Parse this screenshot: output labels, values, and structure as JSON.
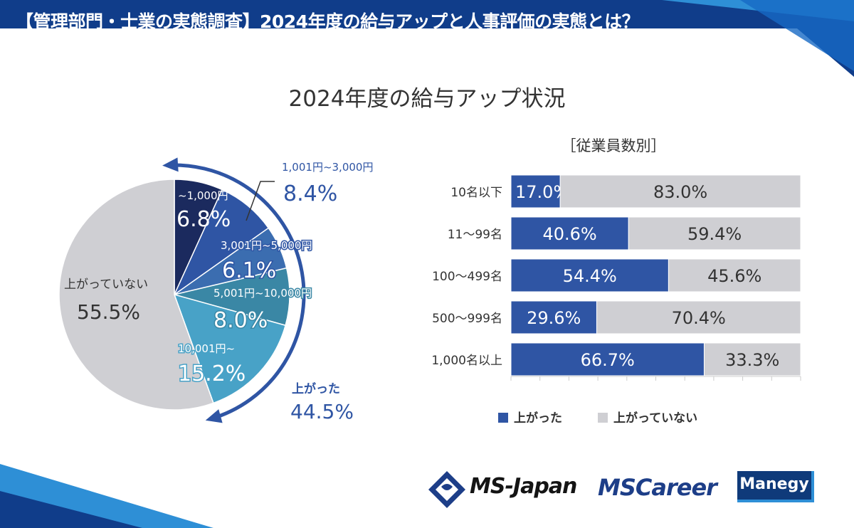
{
  "header": {
    "title": "【管理部門・士業の実態調査】2024年度の給与アップと人事評価の実態とは？"
  },
  "colors": {
    "accent": "#2f55a4",
    "gray": "#cfcfd3",
    "banner": "#103d8a",
    "banner_light": "#2e8fd6"
  },
  "chart_data": [
    {
      "type": "pie",
      "title": "2024年度の給与アップ状況",
      "slices": [
        {
          "label": "~1,000円",
          "value": 6.8,
          "display": "6.8%",
          "color": "#1b2a5e"
        },
        {
          "label": "1,001円~3,000円",
          "value": 8.4,
          "display": "8.4%",
          "color": "#2f55a4"
        },
        {
          "label": "3,001円~5,000円",
          "value": 6.1,
          "display": "6.1%",
          "color": "#3b6db0"
        },
        {
          "label": "5,001円~10,000円",
          "value": 8.0,
          "display": "8.0%",
          "color": "#3a87a5"
        },
        {
          "label": "10,001円~",
          "value": 15.2,
          "display": "15.2%",
          "color": "#48a2c7"
        },
        {
          "label": "上がっていない",
          "value": 55.5,
          "display": "55.5%",
          "color": "#cfcfd3"
        }
      ],
      "group": {
        "label": "上がった",
        "value": 44.5,
        "display": "44.5%"
      }
    },
    {
      "type": "bar",
      "stacked": true,
      "orientation": "horizontal",
      "subtitle": "［従業員数別］",
      "categories": [
        "10名以下",
        "11〜99名",
        "100〜499名",
        "500〜999名",
        "1,000名以上"
      ],
      "series": [
        {
          "name": "上がった",
          "color": "#2f55a4",
          "values": [
            17.0,
            40.6,
            54.4,
            29.6,
            66.7
          ],
          "labels": [
            "17.0%",
            "40.6%",
            "54.4%",
            "29.6%",
            "66.7%"
          ]
        },
        {
          "name": "上がっていない",
          "color": "#cfcfd3",
          "values": [
            83.0,
            59.4,
            45.6,
            70.4,
            33.3
          ],
          "labels": [
            "83.0%",
            "59.4%",
            "45.6%",
            "70.4%",
            "33.3%"
          ]
        }
      ],
      "xlim": [
        0,
        100
      ],
      "legend": [
        "上がった",
        "上がっていない"
      ]
    }
  ],
  "logos": {
    "ms_japan": "MS-Japan",
    "ms_career": "MSCareer",
    "manegy": "Manegy"
  }
}
